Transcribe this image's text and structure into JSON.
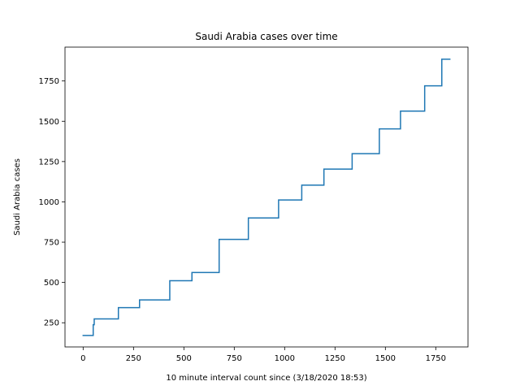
{
  "chart_data": {
    "type": "line",
    "title": "Saudi Arabia cases over time",
    "xlabel": "10 minute interval count since (3/18/2020 18:53)",
    "ylabel": "Saudi Arabia cases",
    "xlim": [
      -90,
      1910
    ],
    "ylim": [
      100,
      1960
    ],
    "x_ticks": [
      0,
      250,
      500,
      750,
      1000,
      1250,
      1500,
      1750
    ],
    "y_ticks": [
      250,
      500,
      750,
      1000,
      1250,
      1500,
      1750
    ],
    "grid": false,
    "line_color": "#1f77b4",
    "series": [
      {
        "step": "post",
        "x": [
          0,
          50,
          55,
          175,
          280,
          430,
          540,
          675,
          820,
          970,
          1085,
          1195,
          1335,
          1470,
          1575,
          1695,
          1780,
          1820
        ],
        "values": [
          171,
          238,
          274,
          344,
          392,
          511,
          562,
          767,
          900,
          1012,
          1104,
          1203,
          1299,
          1453,
          1563,
          1720,
          1885,
          1885
        ]
      }
    ]
  }
}
